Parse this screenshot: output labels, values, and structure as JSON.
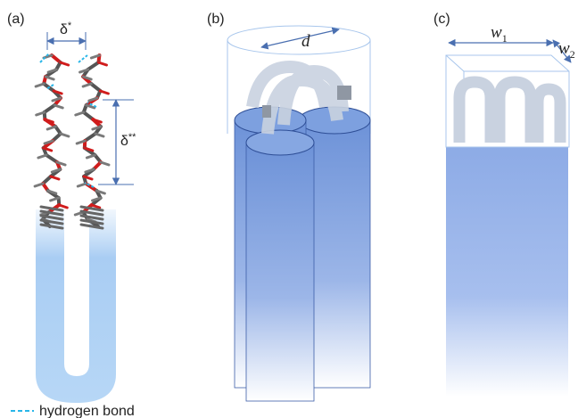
{
  "panels": [
    {
      "label": "(a)",
      "delta_star": {
        "base": "δ",
        "sup": "*"
      },
      "delta_double_star": {
        "base": "δ",
        "sup": "**"
      }
    },
    {
      "label": "(b)",
      "diameter": "d"
    },
    {
      "label": "(c)",
      "width_1": {
        "base": "w",
        "sub": "1"
      },
      "width_2": {
        "base": "w",
        "sub": "2"
      }
    }
  ],
  "legend": {
    "label": "hydrogen bond"
  }
}
